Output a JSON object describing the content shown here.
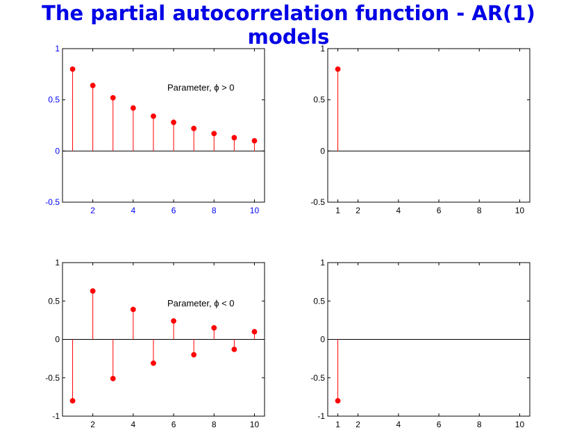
{
  "title": "The partial autocorrelation function - AR(1) models",
  "colors": {
    "title": "#0000e6",
    "stem": "#ff0000",
    "axis_blue": "#0000ff",
    "axis_black": "#000000"
  },
  "chart_data": [
    {
      "type": "stem",
      "x": [
        1,
        2,
        3,
        4,
        5,
        6,
        7,
        8,
        9,
        10
      ],
      "y": [
        0.8,
        0.64,
        0.52,
        0.42,
        0.34,
        0.28,
        0.22,
        0.17,
        0.13,
        0.1
      ],
      "xlim": [
        0.5,
        10.5
      ],
      "ylim": [
        -0.5,
        1
      ],
      "xticks": [
        "2",
        "4",
        "6",
        "8",
        "10"
      ],
      "xtick_values": [
        2,
        4,
        6,
        8,
        10
      ],
      "yticks": [
        "-0.5",
        "0",
        "0.5",
        "1"
      ],
      "ytick_values": [
        -0.5,
        0,
        0.5,
        1
      ],
      "annotation": "Parameter, ϕ > 0",
      "tick_color": "blue"
    },
    {
      "type": "stem",
      "x": [
        1
      ],
      "y": [
        0.8
      ],
      "xlim": [
        0.5,
        10.5
      ],
      "ylim": [
        -0.5,
        1
      ],
      "xticks": [
        "1",
        "2",
        "4",
        "6",
        "8",
        "10"
      ],
      "xtick_values": [
        1,
        2,
        4,
        6,
        8,
        10
      ],
      "yticks": [
        "-0.5",
        "0",
        "0.5",
        "1"
      ],
      "ytick_values": [
        -0.5,
        0,
        0.5,
        1
      ],
      "annotation": "",
      "tick_color": "black"
    },
    {
      "type": "stem",
      "x": [
        1,
        2,
        3,
        4,
        5,
        6,
        7,
        8,
        9,
        10
      ],
      "y": [
        -0.8,
        0.63,
        -0.51,
        0.39,
        -0.31,
        0.24,
        -0.2,
        0.15,
        -0.13,
        0.1
      ],
      "xlim": [
        0.5,
        10.5
      ],
      "ylim": [
        -1,
        1
      ],
      "xticks": [
        "2",
        "4",
        "6",
        "8",
        "10"
      ],
      "xtick_values": [
        2,
        4,
        6,
        8,
        10
      ],
      "yticks": [
        "-1",
        "-0.5",
        "0",
        "0.5",
        "1"
      ],
      "ytick_values": [
        -1,
        -0.5,
        0,
        0.5,
        1
      ],
      "annotation": "Parameter, ϕ < 0",
      "tick_color": "black"
    },
    {
      "type": "stem",
      "x": [
        1
      ],
      "y": [
        -0.8
      ],
      "xlim": [
        0.5,
        10.5
      ],
      "ylim": [
        -1,
        1
      ],
      "xticks": [
        "1",
        "2",
        "4",
        "6",
        "8",
        "10"
      ],
      "xtick_values": [
        1,
        2,
        4,
        6,
        8,
        10
      ],
      "yticks": [
        "-1",
        "-0.5",
        "0",
        "0.5",
        "1"
      ],
      "ytick_values": [
        -1,
        -0.5,
        0,
        0.5,
        1
      ],
      "annotation": "",
      "tick_color": "black"
    }
  ]
}
